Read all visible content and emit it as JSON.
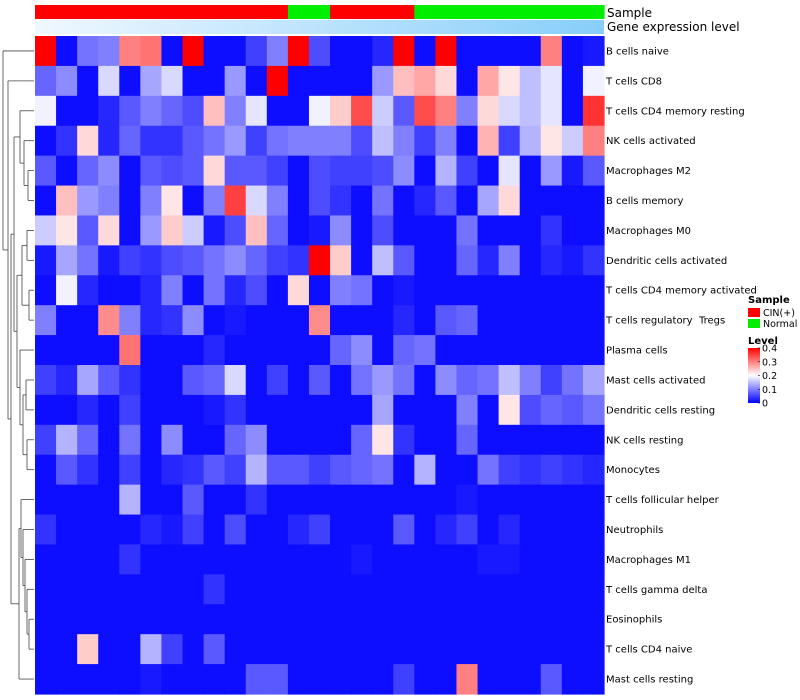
{
  "chart_data": {
    "type": "heatmap",
    "title": "",
    "rows": [
      "B cells naive",
      "T cells CD8",
      "T cells CD4 memory resting",
      "NK cells activated",
      "Macrophages M2",
      "B cells memory",
      "Macrophages M0",
      "Dendritic cells activated",
      "T cells CD4 memory activated",
      "T cells regulatory  Tregs",
      "Plasma cells",
      "Mast cells activated",
      "Dendritic cells resting",
      "NK cells resting",
      "Monocytes",
      "T cells follicular helper",
      "Neutrophils",
      "Macrophages M1",
      "T cells gamma delta",
      "Eosinophils",
      "T cells CD4 naive",
      "Mast cells resting"
    ],
    "column_groups": [
      "CIN(+)",
      "CIN(+)",
      "CIN(+)",
      "CIN(+)",
      "CIN(+)",
      "CIN(+)",
      "CIN(+)",
      "CIN(+)",
      "CIN(+)",
      "CIN(+)",
      "CIN(+)",
      "CIN(+)",
      "Normal",
      "Normal",
      "CIN(+)",
      "CIN(+)",
      "CIN(+)",
      "CIN(+)",
      "Normal",
      "Normal",
      "Normal",
      "Normal",
      "Normal",
      "Normal",
      "Normal",
      "Normal",
      "Normal"
    ],
    "values": [
      [
        0.4,
        0.01,
        0.09,
        0.1,
        0.3,
        0.31,
        0.01,
        0.4,
        0.01,
        0.01,
        0.05,
        0.1,
        0.4,
        0.06,
        0.01,
        0.01,
        0.03,
        0.4,
        0.01,
        0.4,
        0.01,
        0.01,
        0.01,
        0.01,
        0.3,
        0.01,
        0.02
      ],
      [
        0.08,
        0.11,
        0.01,
        0.17,
        0.01,
        0.13,
        0.17,
        0.01,
        0.01,
        0.12,
        0.01,
        0.4,
        0.01,
        0.01,
        0.01,
        0.01,
        0.12,
        0.25,
        0.27,
        0.23,
        0.01,
        0.27,
        0.22,
        0.15,
        0.18,
        0.01,
        0.19
      ],
      [
        0.19,
        0.01,
        0.01,
        0.03,
        0.07,
        0.1,
        0.08,
        0.06,
        0.25,
        0.1,
        0.18,
        0.01,
        0.01,
        0.19,
        0.24,
        0.34,
        0.16,
        0.07,
        0.34,
        0.3,
        0.1,
        0.23,
        0.17,
        0.15,
        0.18,
        0.01,
        0.36
      ],
      [
        0.01,
        0.04,
        0.23,
        0.03,
        0.08,
        0.04,
        0.04,
        0.07,
        0.09,
        0.12,
        0.05,
        0.09,
        0.1,
        0.1,
        0.1,
        0.06,
        0.15,
        0.1,
        0.05,
        0.1,
        0.01,
        0.26,
        0.05,
        0.14,
        0.22,
        0.16,
        0.3
      ],
      [
        0.07,
        0.01,
        0.08,
        0.11,
        0.01,
        0.07,
        0.06,
        0.07,
        0.23,
        0.07,
        0.07,
        0.05,
        0.01,
        0.06,
        0.05,
        0.05,
        0.06,
        0.11,
        0.01,
        0.14,
        0.05,
        0.01,
        0.18,
        0.01,
        0.12,
        0.02,
        0.07
      ],
      [
        0.01,
        0.25,
        0.12,
        0.1,
        0.01,
        0.1,
        0.22,
        0.01,
        0.1,
        0.35,
        0.17,
        0.1,
        0.01,
        0.06,
        0.04,
        0.01,
        0.09,
        0.01,
        0.03,
        0.07,
        0.01,
        0.13,
        0.23,
        0.01,
        0.01,
        0.01,
        0.01
      ],
      [
        0.16,
        0.22,
        0.07,
        0.23,
        0.01,
        0.12,
        0.24,
        0.16,
        0.02,
        0.06,
        0.25,
        0.08,
        0.01,
        0.02,
        0.11,
        0.01,
        0.06,
        0.01,
        0.01,
        0.01,
        0.09,
        0.01,
        0.01,
        0.01,
        0.04,
        0.01,
        0.01
      ],
      [
        0.02,
        0.13,
        0.09,
        0.02,
        0.05,
        0.04,
        0.06,
        0.07,
        0.09,
        0.11,
        0.08,
        0.05,
        0.04,
        0.4,
        0.24,
        0.01,
        0.15,
        0.07,
        0.01,
        0.01,
        0.08,
        0.03,
        0.1,
        0.01,
        0.03,
        0.02,
        0.04
      ],
      [
        0.01,
        0.19,
        0.03,
        0.01,
        0.01,
        0.03,
        0.1,
        0.01,
        0.09,
        0.03,
        0.06,
        0.01,
        0.23,
        0.01,
        0.1,
        0.09,
        0.01,
        0.02,
        0.01,
        0.01,
        0.01,
        0.01,
        0.01,
        0.01,
        0.01,
        0.01,
        0.01
      ],
      [
        0.1,
        0.01,
        0.01,
        0.29,
        0.1,
        0.03,
        0.04,
        0.11,
        0.01,
        0.02,
        0.01,
        0.01,
        0.01,
        0.29,
        0.01,
        0.01,
        0.01,
        0.03,
        0.01,
        0.07,
        0.08,
        0.01,
        0.01,
        0.01,
        0.01,
        0.01,
        0.01
      ],
      [
        0.01,
        0.01,
        0.01,
        0.01,
        0.31,
        0.01,
        0.01,
        0.01,
        0.03,
        0.01,
        0.01,
        0.01,
        0.01,
        0.01,
        0.08,
        0.11,
        0.01,
        0.08,
        0.09,
        0.01,
        0.01,
        0.01,
        0.01,
        0.01,
        0.01,
        0.01,
        0.01
      ],
      [
        0.05,
        0.03,
        0.13,
        0.07,
        0.04,
        0.01,
        0.01,
        0.07,
        0.08,
        0.17,
        0.01,
        0.05,
        0.01,
        0.07,
        0.01,
        0.09,
        0.12,
        0.09,
        0.01,
        0.11,
        0.08,
        0.09,
        0.15,
        0.1,
        0.05,
        0.09,
        0.13
      ],
      [
        0.01,
        0.01,
        0.03,
        0.01,
        0.05,
        0.01,
        0.01,
        0.01,
        0.02,
        0.04,
        0.01,
        0.01,
        0.01,
        0.01,
        0.01,
        0.01,
        0.13,
        0.01,
        0.01,
        0.01,
        0.1,
        0.01,
        0.22,
        0.06,
        0.08,
        0.07,
        0.09
      ],
      [
        0.05,
        0.14,
        0.08,
        0.01,
        0.09,
        0.01,
        0.11,
        0.01,
        0.01,
        0.08,
        0.11,
        0.01,
        0.01,
        0.01,
        0.01,
        0.08,
        0.22,
        0.04,
        0.01,
        0.01,
        0.08,
        0.01,
        0.01,
        0.01,
        0.01,
        0.01,
        0.01
      ],
      [
        0.01,
        0.07,
        0.04,
        0.01,
        0.05,
        0.01,
        0.03,
        0.04,
        0.07,
        0.05,
        0.14,
        0.07,
        0.07,
        0.05,
        0.07,
        0.08,
        0.09,
        0.01,
        0.14,
        0.01,
        0.01,
        0.09,
        0.05,
        0.04,
        0.05,
        0.04,
        0.03
      ],
      [
        0.01,
        0.01,
        0.01,
        0.01,
        0.14,
        0.01,
        0.01,
        0.07,
        0.01,
        0.01,
        0.04,
        0.01,
        0.01,
        0.01,
        0.01,
        0.01,
        0.01,
        0.01,
        0.01,
        0.01,
        0.02,
        0.01,
        0.01,
        0.01,
        0.01,
        0.01,
        0.01
      ],
      [
        0.04,
        0.01,
        0.01,
        0.01,
        0.01,
        0.03,
        0.02,
        0.05,
        0.01,
        0.06,
        0.01,
        0.01,
        0.03,
        0.05,
        0.01,
        0.01,
        0.01,
        0.07,
        0.01,
        0.03,
        0.05,
        0.01,
        0.03,
        0.01,
        0.01,
        0.01,
        0.01
      ],
      [
        0.01,
        0.01,
        0.01,
        0.01,
        0.04,
        0.01,
        0.01,
        0.01,
        0.01,
        0.01,
        0.01,
        0.01,
        0.01,
        0.01,
        0.01,
        0.02,
        0.01,
        0.01,
        0.01,
        0.01,
        0.01,
        0.02,
        0.02,
        0.01,
        0.01,
        0.01,
        0.01
      ],
      [
        0.01,
        0.01,
        0.01,
        0.01,
        0.01,
        0.01,
        0.01,
        0.01,
        0.04,
        0.01,
        0.01,
        0.01,
        0.01,
        0.01,
        0.01,
        0.01,
        0.01,
        0.01,
        0.01,
        0.01,
        0.01,
        0.01,
        0.01,
        0.01,
        0.01,
        0.01,
        0.01
      ],
      [
        0.01,
        0.01,
        0.01,
        0.01,
        0.01,
        0.01,
        0.01,
        0.01,
        0.01,
        0.01,
        0.01,
        0.01,
        0.01,
        0.01,
        0.01,
        0.01,
        0.01,
        0.01,
        0.01,
        0.01,
        0.01,
        0.01,
        0.01,
        0.01,
        0.01,
        0.01,
        0.01
      ],
      [
        0.01,
        0.01,
        0.24,
        0.01,
        0.01,
        0.14,
        0.05,
        0.01,
        0.07,
        0.01,
        0.01,
        0.01,
        0.01,
        0.01,
        0.01,
        0.01,
        0.01,
        0.01,
        0.01,
        0.01,
        0.01,
        0.01,
        0.01,
        0.01,
        0.01,
        0.01,
        0.01
      ],
      [
        0.01,
        0.01,
        0.01,
        0.01,
        0.01,
        0.02,
        0.01,
        0.01,
        0.01,
        0.01,
        0.07,
        0.07,
        0.01,
        0.01,
        0.01,
        0.01,
        0.01,
        0.05,
        0.01,
        0.01,
        0.3,
        0.01,
        0.01,
        0.01,
        0.07,
        0.01,
        0.01
      ]
    ],
    "annotation_rows": [
      "Sample",
      "Gene expression level"
    ],
    "legend": {
      "sample_title": "Sample",
      "sample_items": [
        {
          "label": "CIN(+)",
          "color": "#ff0000"
        },
        {
          "label": "Normal",
          "color": "#00ee00"
        }
      ],
      "level_title": "Level",
      "level_ticks": [
        "0.4",
        "0.3",
        "0.2",
        "0.1",
        "0"
      ],
      "level_tick_values": [
        0.4,
        0.3,
        0.2,
        0.1,
        0
      ],
      "placement": "right"
    },
    "color_scale": {
      "low": "#0000ff",
      "mid": "#ffffff",
      "high": "#ff0000",
      "min": 0,
      "max": 0.4
    },
    "expression_gradient": {
      "from": "#f0f8ff",
      "to": "#87cefa"
    }
  }
}
